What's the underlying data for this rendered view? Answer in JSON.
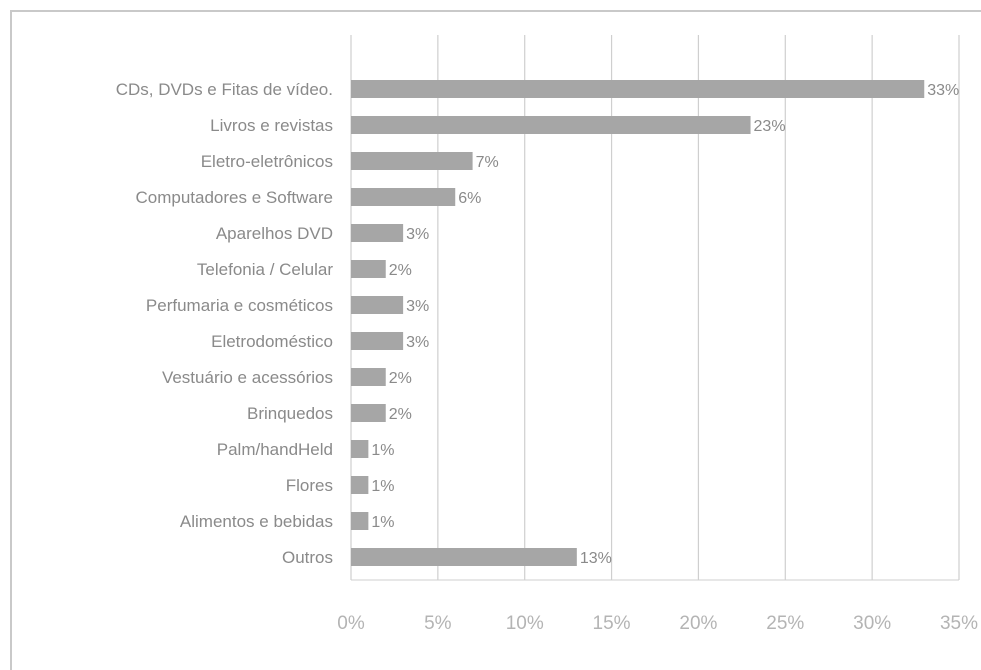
{
  "chart_data": {
    "type": "bar",
    "orientation": "horizontal",
    "categories": [
      "CDs, DVDs e Fitas de vídeo.",
      "Livros e revistas",
      "Eletro-eletrônicos",
      "Computadores e Software",
      "Aparelhos DVD",
      "Telefonia / Celular",
      "Perfumaria e cosméticos",
      "Eletrodoméstico",
      "Vestuário e acessórios",
      "Brinquedos",
      "Palm/handHeld",
      "Flores",
      "Alimentos e bebidas",
      "Outros"
    ],
    "values": [
      33,
      23,
      7,
      6,
      3,
      2,
      3,
      3,
      2,
      2,
      1,
      1,
      1,
      13
    ],
    "value_labels": [
      "33%",
      "23%",
      "7%",
      "6%",
      "3%",
      "2%",
      "3%",
      "3%",
      "2%",
      "2%",
      "1%",
      "1%",
      "1%",
      "13%"
    ],
    "xlim": [
      0,
      35
    ],
    "x_ticks": [
      0,
      5,
      10,
      15,
      20,
      25,
      30,
      35
    ],
    "x_tick_labels": [
      "0%",
      "5%",
      "10%",
      "15%",
      "20%",
      "25%",
      "30%",
      "35%"
    ],
    "grid": "vertical",
    "bar_color": "#a6a6a6",
    "gridline_color": "#cfcfcf",
    "title": "",
    "xlabel": "",
    "ylabel": ""
  }
}
